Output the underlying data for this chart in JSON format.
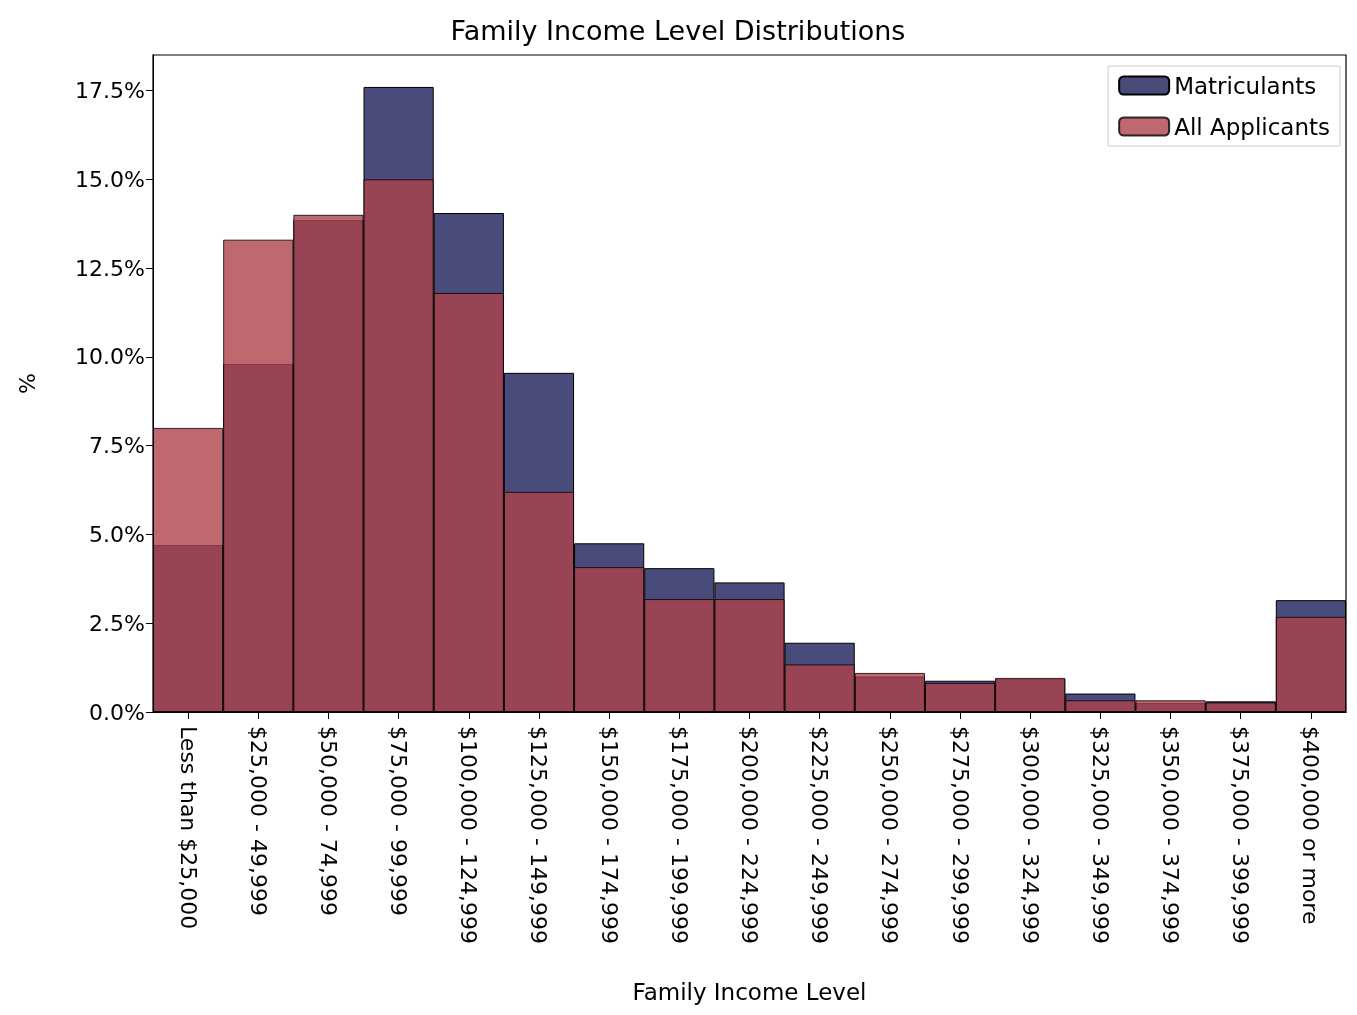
{
  "chart_data": {
    "type": "bar",
    "title": "Family Income Level Distributions",
    "xlabel": "Family Income Level",
    "ylabel": "%",
    "categories": [
      "Less than $25,000",
      "$25,000 - 49,999",
      "$50,000 - 74,999",
      "$75,000 - 99,999",
      "$100,000 - 124,999",
      "$125,000 - 149,999",
      "$150,000 - 174,999",
      "$175,000 - 199,999",
      "$200,000 - 224,999",
      "$225,000 - 249,999",
      "$250,000 - 274,999",
      "$275,000 - 299,999",
      "$300,000 - 324,999",
      "$325,000 - 349,999",
      "$350,000 - 374,999",
      "$375,000 - 399,999",
      "$400,000 or more"
    ],
    "series": [
      {
        "name": "Matriculants",
        "color": "#494c7a",
        "values": [
          4.7,
          9.8,
          13.85,
          17.6,
          14.05,
          9.55,
          4.75,
          4.05,
          3.65,
          1.95,
          1.0,
          0.88,
          0.93,
          0.52,
          0.25,
          0.3,
          3.15
        ]
      },
      {
        "name": "All Applicants",
        "color": "#ae424b",
        "values": [
          8.0,
          13.3,
          14.0,
          15.0,
          11.8,
          6.2,
          4.08,
          3.18,
          3.18,
          1.34,
          1.1,
          0.82,
          0.96,
          0.33,
          0.33,
          0.27,
          2.68
        ]
      }
    ],
    "ylim": [
      0,
      18.5
    ],
    "yticks": [
      {
        "value": 0,
        "label": "0.0%"
      },
      {
        "value": 2.5,
        "label": "2.5%"
      },
      {
        "value": 5,
        "label": "5.0%"
      },
      {
        "value": 7.5,
        "label": "7.5%"
      },
      {
        "value": 10,
        "label": "10.0%"
      },
      {
        "value": 12.5,
        "label": "12.5%"
      },
      {
        "value": 15,
        "label": "15.0%"
      },
      {
        "value": 17.5,
        "label": "17.5%"
      }
    ],
    "legend": "top right",
    "grid": false
  }
}
